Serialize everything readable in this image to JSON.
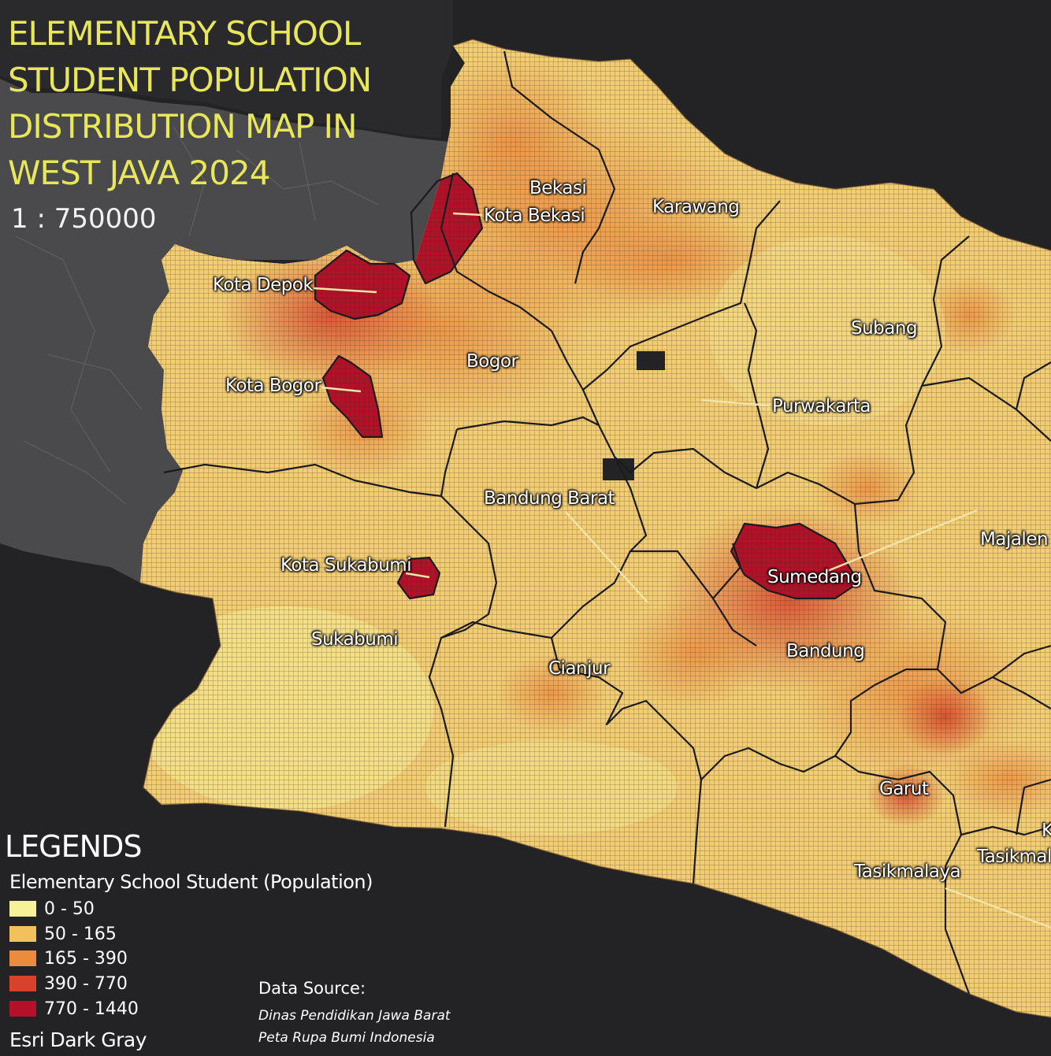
{
  "title_lines": [
    "ELEMENTARY SCHOOL",
    "STUDENT POPULATION",
    "DISTRIBUTION MAP IN",
    "WEST JAVA 2024"
  ],
  "scale": "1 : 750000",
  "colors": {
    "background": "#232326",
    "land_gray": "#4a4a4d",
    "title": "#e8e65a",
    "leader_line": "#f3e3a6",
    "class_0_50": "#f5f29a",
    "class_50_165": "#f2c15e",
    "class_165_390": "#ec8a3d",
    "class_390_770": "#d9422a",
    "class_770_1440": "#b5102a"
  },
  "labels": {
    "bekasi": "Bekasi",
    "kota_bekasi": "Kota Bekasi",
    "karawang": "Karawang",
    "kota_depok": "Kota Depok",
    "bogor": "Bogor",
    "subang": "Subang",
    "kota_bogor": "Kota Bogor",
    "purwakarta": "Purwakarta",
    "bandung_barat": "Bandung Barat",
    "majalengka": "Majalen",
    "kota_sukabumi": "Kota Sukabumi",
    "sumedang": "Sumedang",
    "sukabumi": "Sukabumi",
    "bandung": "Bandung",
    "cianjur": "Cianjur",
    "garut": "Garut",
    "tasikmalaya": "Tasikmalaya",
    "kota_tasikmalaya": "Tasikmal",
    "edge_k": "K"
  },
  "legend": {
    "title": "LEGENDS",
    "subtitle": "Elementary School Student (Population)",
    "classes": [
      {
        "label": "0 - 50",
        "color": "#f5f29a"
      },
      {
        "label": "50 - 165",
        "color": "#f2c15e"
      },
      {
        "label": "165 - 390",
        "color": "#ec8a3d"
      },
      {
        "label": "390 - 770",
        "color": "#d9422a"
      },
      {
        "label": "770 - 1440",
        "color": "#b5102a"
      }
    ],
    "basemap": "Esri Dark Gray"
  },
  "source": {
    "heading": "Data Source:",
    "lines": [
      "Dinas Pendidikan Jawa Barat",
      "Peta Rupa Bumi Indonesia"
    ]
  }
}
